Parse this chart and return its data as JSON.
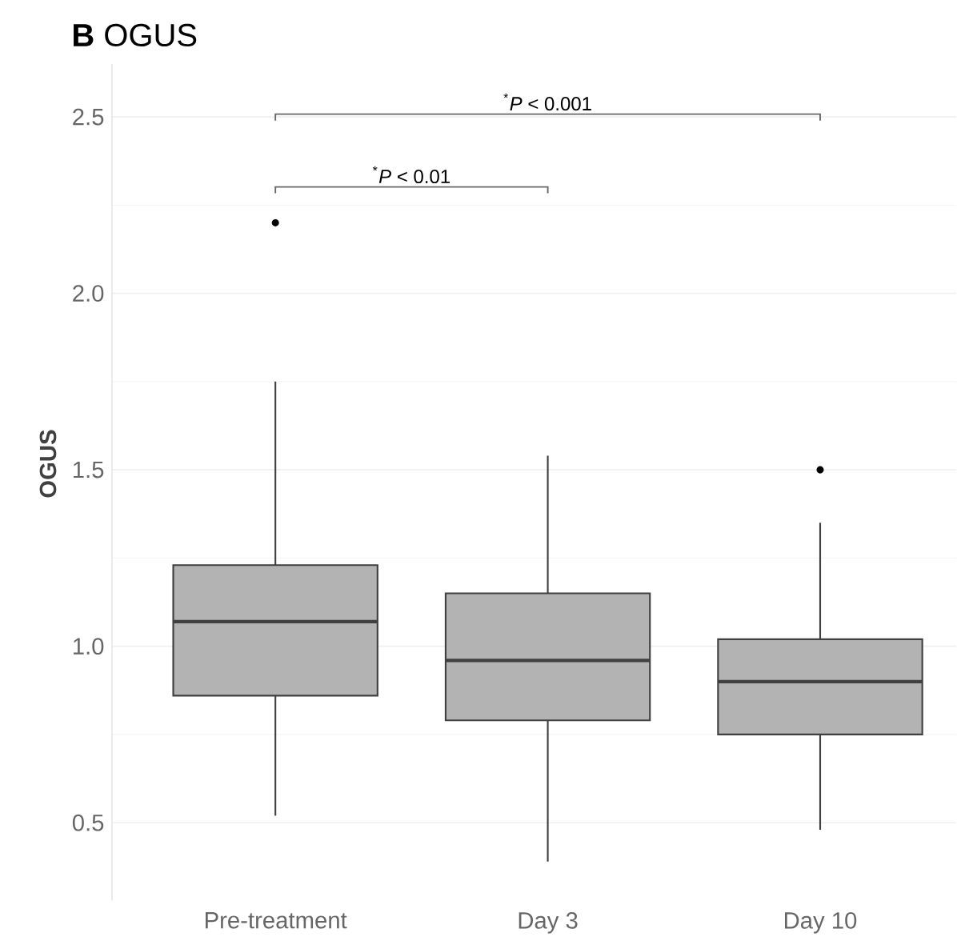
{
  "chart_data": {
    "type": "box",
    "title": "**B** OGUS",
    "ylabel": "OGUS",
    "categories": [
      "Pre-treatment",
      "Day 3",
      "Day 10"
    ],
    "series": [
      {
        "color": "#b3b3b3",
        "boxes": [
          {
            "low": 0.52,
            "q1": 0.86,
            "median": 1.07,
            "q3": 1.23,
            "high": 1.75,
            "outliers": [
              2.2
            ]
          },
          {
            "low": 0.39,
            "q1": 0.79,
            "median": 0.96,
            "q3": 1.15,
            "high": 1.54
          },
          {
            "low": 0.48,
            "q1": 0.75,
            "median": 0.9,
            "q3": 1.02,
            "high": 1.35,
            "outliers": [
              1.5
            ]
          }
        ]
      }
    ],
    "ylim": [
      0.28,
      2.65
    ],
    "yticks": [
      0.5,
      {
        "value": 1.0,
        "label": "1.0"
      },
      1.5,
      {
        "value": 2.0,
        "label": "2.0"
      },
      2.5
    ],
    "grid": "y",
    "annotations": [
      "$^{*}$*P* < 0.01",
      "$^{*}$*P* < 0.001"
    ]
  }
}
